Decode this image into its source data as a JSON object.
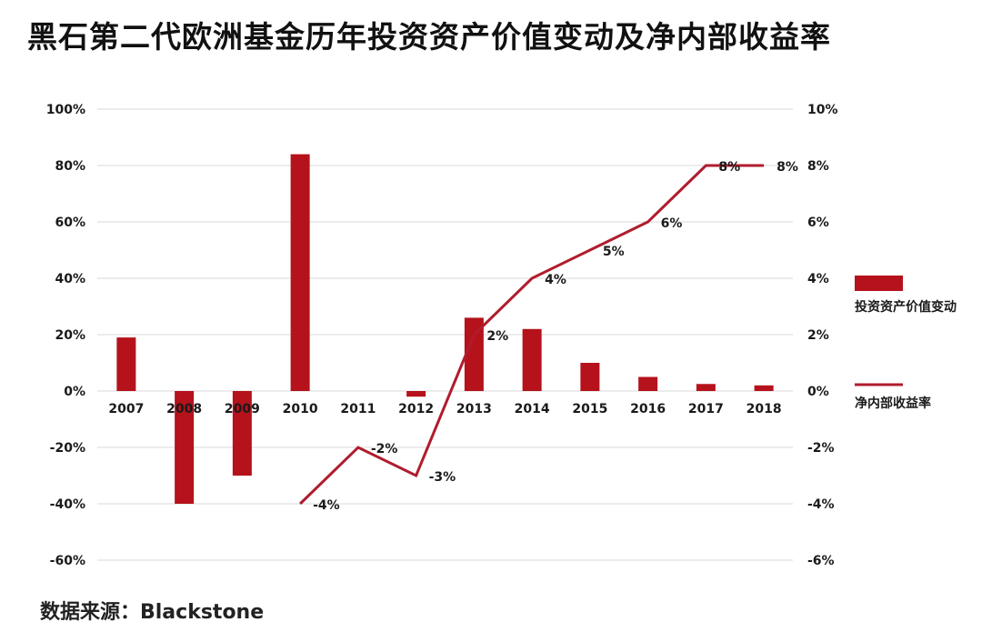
{
  "title": "黑石第二代欧洲基金历年投资资产价值变动及净内部收益率",
  "source": "数据来源：Blackstone",
  "colors": {
    "bar": "#b5121b",
    "line": "#b01c2e",
    "grid": "#d9d9d9",
    "text": "#1a1a1a"
  },
  "chart_data": {
    "type": "bar",
    "categories": [
      "2007",
      "2008",
      "2009",
      "2010",
      "2011",
      "2012",
      "2013",
      "2014",
      "2015",
      "2016",
      "2017",
      "2018"
    ],
    "series": [
      {
        "name": "投资资产价值变动",
        "type": "bar",
        "axis": "left",
        "values": [
          19,
          -40,
          -30,
          84,
          0,
          -2,
          26,
          22,
          10,
          5,
          2.5,
          2
        ]
      },
      {
        "name": "净内部收益率",
        "type": "line",
        "axis": "right",
        "values": [
          null,
          null,
          null,
          -4,
          -2,
          -3,
          2,
          4,
          5,
          6,
          8,
          8
        ],
        "labels": [
          "",
          "",
          "",
          "-4%",
          "-2%",
          "-3%",
          "2%",
          "4%",
          "5%",
          "6%",
          "8%",
          "8%"
        ]
      }
    ],
    "y_left": {
      "ticks": [
        "100%",
        "80%",
        "60%",
        "40%",
        "20%",
        "0%",
        "-20%",
        "-40%",
        "-60%"
      ],
      "ylim": [
        -60,
        100
      ]
    },
    "y_right": {
      "ticks": [
        "10%",
        "8%",
        "6%",
        "4%",
        "2%",
        "0%",
        "-2%",
        "-4%",
        "-6%"
      ],
      "ylim": [
        -6,
        10
      ]
    },
    "grid": true,
    "legend_position": "right"
  }
}
